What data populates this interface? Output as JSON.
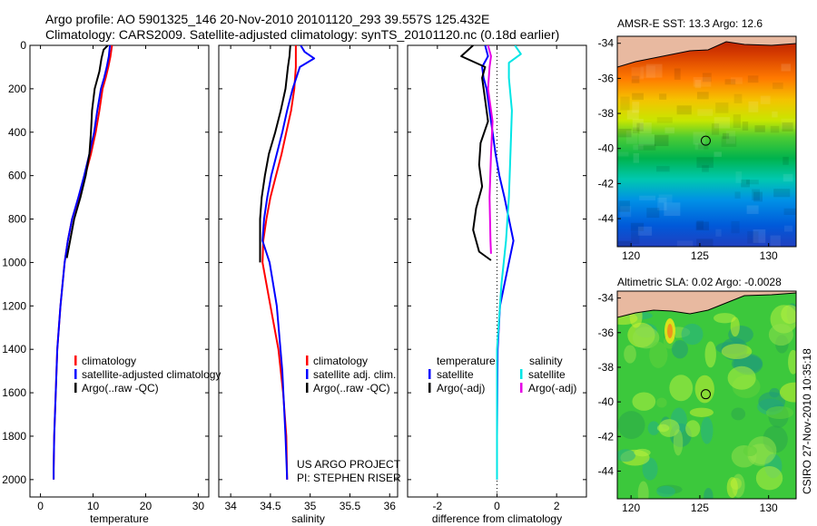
{
  "header": {
    "line1": "Argo profile: AO 5901325_146 20-Nov-2010 20101120_293 39.557S 125.432E",
    "line2": "Climatology: CARS2009. Satellite-adjusted climatology: synTS_20101120.nc (0.18d earlier)"
  },
  "footer": {
    "project": "US ARGO PROJECT",
    "pi": "PI: STEPHEN RISER",
    "stamp": "CSIRO 27-Nov-2010 10:35:18"
  },
  "colors": {
    "climatology": "#ff0000",
    "satellite": "#0000ff",
    "argo": "#000000",
    "salinity_satellite": "#00e5e5",
    "salinity_argo": "#e600e6"
  },
  "chart_data": [
    {
      "id": "temperature",
      "type": "line",
      "xlabel": "temperature",
      "ylabel": "",
      "xlim": [
        -2,
        32
      ],
      "ylim": [
        2080,
        0
      ],
      "xticks": [
        0,
        10,
        20,
        30
      ],
      "xticklabels": [
        "0",
        "10",
        "20",
        "30"
      ],
      "yticks": [
        0,
        200,
        400,
        600,
        800,
        1000,
        1200,
        1400,
        1600,
        1800,
        2000
      ],
      "legend": {
        "position": "lower-right",
        "entries": [
          "climatology",
          "satellite-adjusted climatology",
          "Argo(..raw -QC)"
        ]
      },
      "series": [
        {
          "name": "climatology",
          "color": "#ff0000",
          "width": 2,
          "x": [
            13.6,
            13.3,
            12.9,
            12.4,
            11.8,
            11.2,
            10.5,
            9.6,
            8.5,
            7.3,
            6.0,
            5.2,
            4.6,
            3.8,
            3.2,
            2.9,
            2.6,
            2.5,
            2.5
          ],
          "y": [
            0,
            50,
            100,
            150,
            200,
            300,
            400,
            500,
            600,
            700,
            800,
            900,
            1000,
            1200,
            1400,
            1600,
            1800,
            1950,
            2000
          ]
        },
        {
          "name": "satellite-adjusted climatology",
          "color": "#0000ff",
          "width": 2,
          "x": [
            13.2,
            13.0,
            12.6,
            12.1,
            11.5,
            10.8,
            10.2,
            9.3,
            8.3,
            7.2,
            6.0,
            5.2,
            4.6,
            3.8,
            3.2,
            2.9,
            2.6,
            2.5,
            2.5
          ],
          "y": [
            0,
            50,
            100,
            150,
            200,
            300,
            400,
            500,
            600,
            700,
            800,
            900,
            1000,
            1200,
            1400,
            1600,
            1800,
            1950,
            2000
          ]
        },
        {
          "name": "Argo(..raw -QC)",
          "color": "#000000",
          "width": 2,
          "x": [
            12.8,
            12.0,
            11.6,
            11.2,
            10.3,
            9.8,
            9.6,
            9.3,
            8.6,
            7.6,
            6.4,
            5.0
          ],
          "y": [
            0,
            20,
            60,
            120,
            200,
            300,
            400,
            500,
            600,
            700,
            800,
            980
          ]
        }
      ]
    },
    {
      "id": "salinity",
      "type": "line",
      "xlabel": "salinity",
      "ylabel": "",
      "xlim": [
        33.85,
        36.1
      ],
      "ylim": [
        2080,
        0
      ],
      "xticks": [
        34,
        34.5,
        35,
        35.5,
        36
      ],
      "xticklabels": [
        "34",
        "34.5",
        "35",
        "35.5",
        "36"
      ],
      "legend": {
        "position": "lower-right",
        "entries": [
          "climatology",
          "satellite adj. clim.",
          "Argo(..raw -QC)"
        ]
      },
      "series": [
        {
          "name": "climatology",
          "color": "#ff0000",
          "width": 2,
          "x": [
            34.82,
            34.82,
            34.82,
            34.8,
            34.76,
            34.7,
            34.64,
            34.57,
            34.5,
            34.45,
            34.41,
            34.4,
            34.5,
            34.6,
            34.66,
            34.7,
            34.71
          ],
          "y": [
            0,
            50,
            100,
            200,
            300,
            400,
            500,
            600,
            700,
            800,
            900,
            1000,
            1200,
            1400,
            1600,
            1800,
            2000
          ]
        },
        {
          "name": "satellite adj. clim.",
          "color": "#0000ff",
          "width": 2,
          "x": [
            34.88,
            34.93,
            35.05,
            34.87,
            34.78,
            34.71,
            34.65,
            34.58,
            34.51,
            34.46,
            34.42,
            34.4,
            34.49,
            34.58,
            34.65,
            34.69,
            34.71
          ],
          "y": [
            0,
            30,
            60,
            100,
            200,
            300,
            400,
            500,
            600,
            700,
            800,
            900,
            1000,
            1200,
            1500,
            1800,
            2000
          ]
        },
        {
          "name": "Argo(..raw -QC)",
          "color": "#000000",
          "width": 2,
          "x": [
            34.75,
            34.74,
            34.72,
            34.69,
            34.63,
            34.56,
            34.48,
            34.43,
            34.39,
            34.37,
            34.37
          ],
          "y": [
            0,
            50,
            100,
            200,
            300,
            400,
            500,
            600,
            700,
            800,
            1000
          ]
        }
      ]
    },
    {
      "id": "difference",
      "type": "line",
      "xlabel": "difference from climatology",
      "ylabel": "",
      "xlim": [
        -3,
        3
      ],
      "ylim": [
        2080,
        0
      ],
      "xticks": [
        -2,
        0,
        2
      ],
      "xticklabels": [
        "-2",
        "0",
        "2"
      ],
      "legend": {
        "position": "lower-center",
        "columns": [
          "temperature",
          "salinity"
        ],
        "entries_temperature": [
          "satellite",
          "Argo(-adj)"
        ],
        "entries_salinity": [
          "satellite",
          "Argo(-adj)"
        ]
      },
      "series": [
        {
          "name": "temperature satellite",
          "color": "#0000ff",
          "width": 2,
          "x": [
            -0.4,
            -0.3,
            -0.5,
            -0.45,
            -0.35,
            -0.25,
            -0.15,
            -0.05,
            0.08,
            0.25,
            0.4,
            0.55,
            0.4,
            0.1,
            0.02,
            0.0,
            0.0
          ],
          "y": [
            0,
            50,
            100,
            150,
            200,
            300,
            400,
            500,
            600,
            700,
            800,
            900,
            1000,
            1200,
            1400,
            1800,
            2000
          ]
        },
        {
          "name": "temperature Argo(-adj)",
          "color": "#000000",
          "width": 2,
          "x": [
            -0.8,
            -1.2,
            -0.4,
            -0.5,
            -0.4,
            -0.3,
            -0.55,
            -0.6,
            -0.5,
            -0.7,
            -0.8,
            -0.6,
            -0.2
          ],
          "y": [
            0,
            50,
            100,
            150,
            250,
            350,
            450,
            550,
            650,
            750,
            850,
            950,
            990
          ]
        },
        {
          "name": "salinity satellite",
          "color": "#00e5e5",
          "width": 2,
          "x": [
            0.6,
            0.8,
            0.4,
            0.4,
            0.5,
            0.45,
            0.4,
            0.3,
            0.15,
            0.0,
            0.0,
            0.0
          ],
          "y": [
            0,
            40,
            80,
            150,
            300,
            500,
            700,
            900,
            1100,
            1400,
            1700,
            2000
          ]
        },
        {
          "name": "salinity Argo(-adj)",
          "color": "#e600e6",
          "width": 2,
          "x": [
            -0.3,
            -0.2,
            -0.25,
            -0.3,
            -0.15,
            -0.2,
            -0.25,
            -0.22,
            -0.2
          ],
          "y": [
            0,
            50,
            100,
            200,
            350,
            500,
            700,
            900,
            960
          ]
        }
      ]
    },
    {
      "id": "sst_map",
      "type": "heatmap",
      "title": "AMSR-E SST: 13.3 Argo: 12.6",
      "xlim": [
        119,
        132
      ],
      "ylim": [
        -45.6,
        -33.6
      ],
      "xticks": [
        120,
        125,
        130
      ],
      "yticks": [
        -34,
        -36,
        -38,
        -40,
        -42,
        -44
      ],
      "marker": {
        "lon": 125.432,
        "lat": -39.557
      }
    },
    {
      "id": "sla_map",
      "type": "heatmap",
      "title": "Altimetric SLA: 0.02 Argo: -0.0028",
      "xlim": [
        119,
        132
      ],
      "ylim": [
        -45.6,
        -33.6
      ],
      "xticks": [
        120,
        125,
        130
      ],
      "yticks": [
        -34,
        -36,
        -38,
        -40,
        -42,
        -44
      ],
      "marker": {
        "lon": 125.432,
        "lat": -39.557
      }
    }
  ]
}
